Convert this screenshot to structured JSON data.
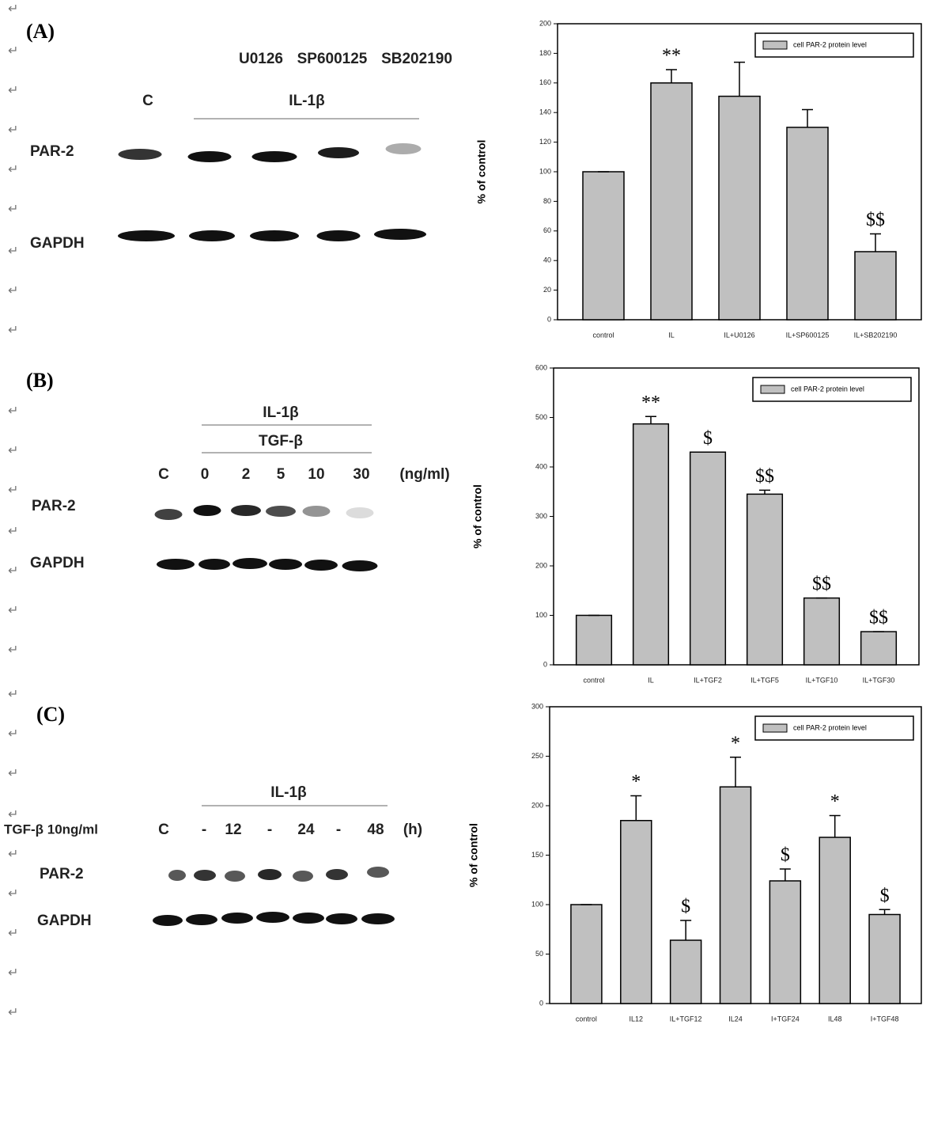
{
  "chart_data": [
    {
      "type": "bar",
      "y_label": "% of control",
      "categories": [
        "control",
        "IL",
        "IL+U0126",
        "IL+SP600125",
        "IL+SB202190"
      ],
      "series": [
        {
          "name": "cell PAR-2 protein level",
          "color": "#c0c0c0",
          "values": [
            100,
            160,
            151,
            130,
            46
          ],
          "errors": [
            0,
            9,
            23,
            12,
            12
          ]
        }
      ],
      "annotations": [
        null,
        "**",
        null,
        null,
        "$$"
      ],
      "ylim": [
        0,
        200
      ],
      "yticks": [
        0,
        20,
        40,
        60,
        80,
        100,
        120,
        140,
        160,
        180,
        200
      ],
      "legend": "upper right"
    },
    {
      "type": "bar",
      "y_label": "% of control",
      "categories": [
        "control",
        "IL",
        "IL+TGF2",
        "IL+TGF5",
        "IL+TGF10",
        "IL+TGF30"
      ],
      "series": [
        {
          "name": "cell PAR-2 protein level",
          "color": "#c0c0c0",
          "values": [
            100,
            487,
            430,
            345,
            135,
            67
          ],
          "errors": [
            0,
            15,
            0,
            8,
            0,
            0
          ]
        }
      ],
      "annotations": [
        null,
        "**",
        "$",
        "$$",
        "$$",
        "$$"
      ],
      "ylim": [
        0,
        600
      ],
      "yticks": [
        0,
        100,
        200,
        300,
        400,
        500,
        600
      ],
      "legend": "upper right"
    },
    {
      "type": "bar",
      "y_label": "% of control",
      "categories": [
        "control",
        "IL12",
        "IL+TGF12",
        "IL24",
        "I+TGF24",
        "IL48",
        "I+TGF48"
      ],
      "series": [
        {
          "name": "cell PAR-2 protein level",
          "color": "#c0c0c0",
          "values": [
            100,
            185,
            64,
            219,
            124,
            168,
            90
          ],
          "errors": [
            0,
            25,
            20,
            30,
            12,
            22,
            5
          ]
        }
      ],
      "annotations": [
        null,
        "*",
        "$",
        "*",
        "$",
        "*",
        "$"
      ],
      "ylim": [
        0,
        300
      ],
      "yticks": [
        0,
        50,
        100,
        150,
        200,
        250,
        300
      ],
      "legend": "upper right"
    }
  ],
  "paragraph_mark": "↵",
  "blots": [
    {
      "panel": "(A)",
      "treatments": [
        "U0126",
        "SP600125",
        "SB202190"
      ],
      "group": "IL-1β",
      "lanes": [
        "C"
      ],
      "rows": [
        "PAR-2",
        "GAPDH"
      ]
    },
    {
      "panel": "(B)",
      "groups": [
        "IL-1β",
        "TGF-β"
      ],
      "lanes": [
        "C",
        "0",
        "2",
        "5",
        "10",
        "30"
      ],
      "unit": "(ng/ml)",
      "rows": [
        "PAR-2",
        "GAPDH"
      ]
    },
    {
      "panel": "(C)",
      "group": "IL-1β",
      "row_label": "TGF-β 10ng/ml",
      "lanes": [
        "C",
        "-",
        "12",
        "-",
        "24",
        "-",
        "48"
      ],
      "unit": "(h)",
      "rows": [
        "PAR-2",
        "GAPDH"
      ]
    }
  ]
}
